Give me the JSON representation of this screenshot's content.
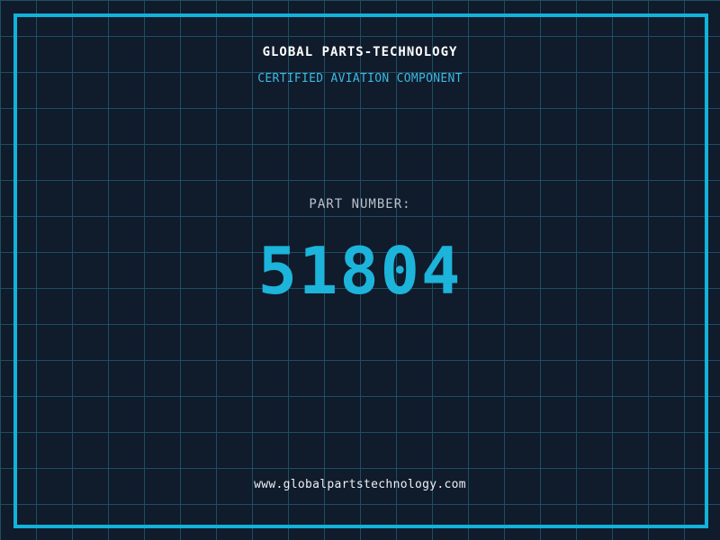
{
  "header": {
    "title": "GLOBAL PARTS-TECHNOLOGY",
    "subtitle": "CERTIFIED AVIATION COMPONENT"
  },
  "part": {
    "label": "PART NUMBER:",
    "number": "51804"
  },
  "footer": {
    "url": "www.globalpartstechnology.com"
  },
  "colors": {
    "background": "#101b2c",
    "grid_line": "#1d4f63",
    "frame": "#12b2da",
    "title": "#ffffff",
    "subtitle": "#3cb8e0",
    "part_label": "#b9c2cb",
    "part_number": "#1cb4da",
    "footer": "#eef1f4"
  }
}
